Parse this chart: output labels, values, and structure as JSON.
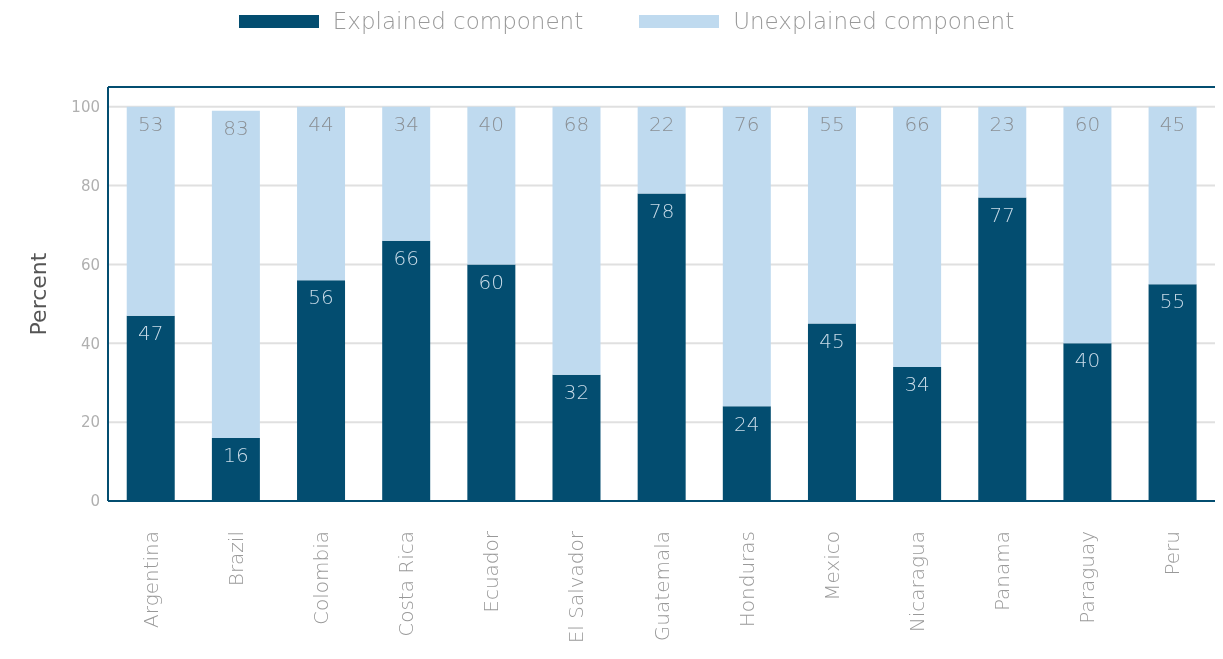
{
  "chart_data": {
    "type": "bar",
    "stacked": true,
    "ylabel": "Percent",
    "categories": [
      "Argentina",
      "Brazil",
      "Colombia",
      "Costa Rica",
      "Ecuador",
      "El Salvador",
      "Guatemala",
      "Honduras",
      "Mexico",
      "Nicaragua",
      "Panama",
      "Paraguay",
      "Peru"
    ],
    "series": [
      {
        "name": "Explained component",
        "color": "#034d70",
        "values": [
          47,
          16,
          56,
          66,
          60,
          32,
          78,
          24,
          45,
          34,
          77,
          40,
          55
        ]
      },
      {
        "name": "Unexplained component",
        "color": "#bfdaef",
        "values": [
          53,
          83,
          44,
          34,
          40,
          68,
          22,
          76,
          55,
          66,
          23,
          60,
          45
        ]
      }
    ],
    "ylim": [
      0,
      105
    ],
    "yticks": [
      0,
      20,
      40,
      60,
      80,
      100
    ],
    "grid": "y",
    "legend": "top",
    "data_labels": true
  }
}
